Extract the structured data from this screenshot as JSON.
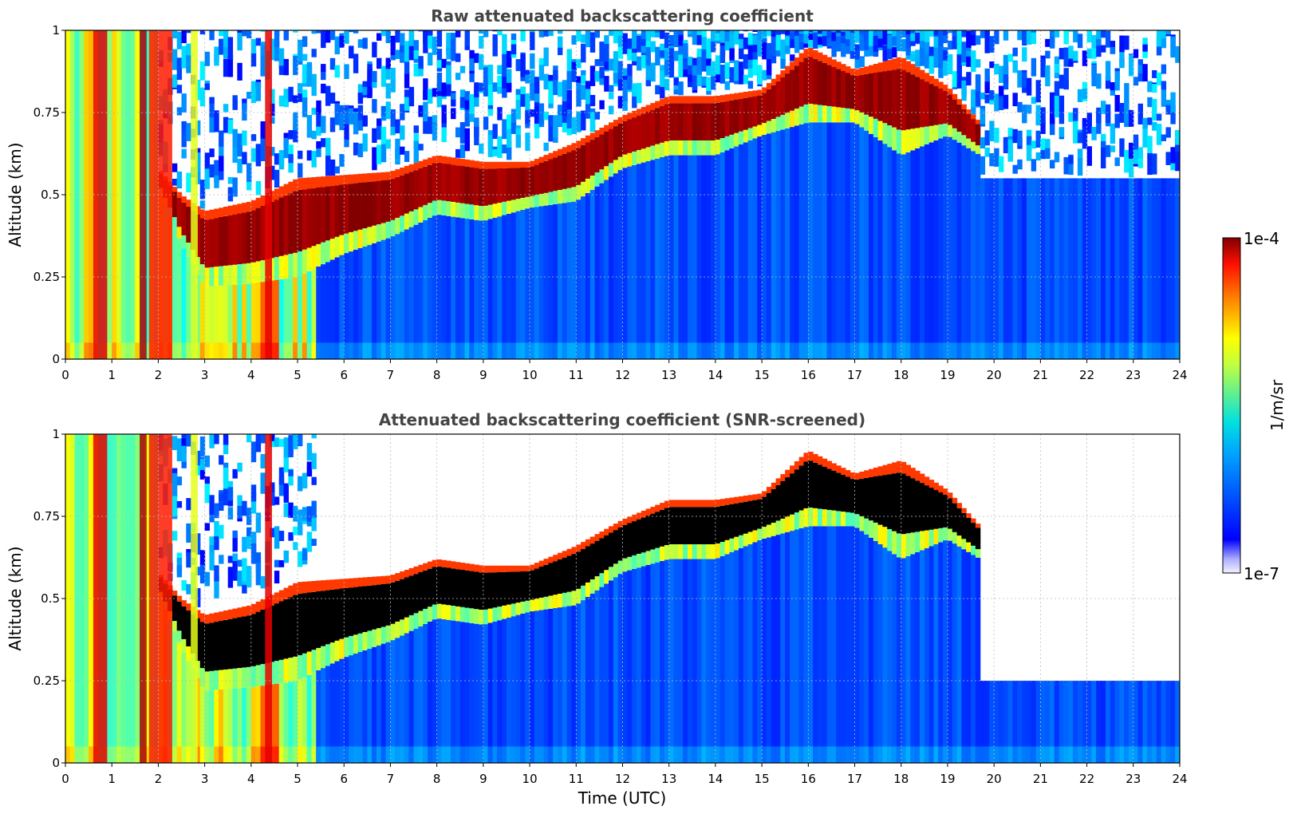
{
  "chart_data": [
    {
      "type": "heatmap",
      "title": "Raw attenuated backscattering coefficient",
      "xlabel": "",
      "ylabel": "Altitude (km)",
      "xlim": [
        0,
        24
      ],
      "ylim": [
        0,
        1
      ],
      "xticks": [
        "0",
        "1",
        "2",
        "3",
        "4",
        "5",
        "6",
        "7",
        "8",
        "9",
        "10",
        "11",
        "12",
        "13",
        "14",
        "15",
        "16",
        "17",
        "18",
        "19",
        "20",
        "21",
        "22",
        "23",
        "24"
      ],
      "yticks": [
        "0",
        "0.25",
        "0.5",
        "0.75",
        "1"
      ],
      "grid": true,
      "layer_top_km": [
        {
          "t": 0.0,
          "z": 0.98
        },
        {
          "t": 1.5,
          "z": 0.98
        },
        {
          "t": 2.0,
          "z": 0.58
        },
        {
          "t": 2.5,
          "z": 0.5
        },
        {
          "t": 3.0,
          "z": 0.45
        },
        {
          "t": 4.0,
          "z": 0.48
        },
        {
          "t": 5.0,
          "z": 0.55
        },
        {
          "t": 6.0,
          "z": 0.56
        },
        {
          "t": 7.0,
          "z": 0.57
        },
        {
          "t": 8.0,
          "z": 0.62
        },
        {
          "t": 9.0,
          "z": 0.6
        },
        {
          "t": 10.0,
          "z": 0.6
        },
        {
          "t": 11.0,
          "z": 0.66
        },
        {
          "t": 12.0,
          "z": 0.74
        },
        {
          "t": 13.0,
          "z": 0.8
        },
        {
          "t": 14.0,
          "z": 0.8
        },
        {
          "t": 15.0,
          "z": 0.82
        },
        {
          "t": 16.0,
          "z": 0.95
        },
        {
          "t": 17.0,
          "z": 0.88
        },
        {
          "t": 18.0,
          "z": 0.92
        },
        {
          "t": 19.0,
          "z": 0.83
        },
        {
          "t": 19.7,
          "z": 0.72
        }
      ],
      "layer_base_km": [
        {
          "t": 2.0,
          "z": 0.52
        },
        {
          "t": 2.5,
          "z": 0.35
        },
        {
          "t": 3.0,
          "z": 0.22
        },
        {
          "t": 4.0,
          "z": 0.23
        },
        {
          "t": 5.0,
          "z": 0.25
        },
        {
          "t": 6.0,
          "z": 0.32
        },
        {
          "t": 7.0,
          "z": 0.37
        },
        {
          "t": 8.0,
          "z": 0.44
        },
        {
          "t": 9.0,
          "z": 0.42
        },
        {
          "t": 10.0,
          "z": 0.46
        },
        {
          "t": 11.0,
          "z": 0.48
        },
        {
          "t": 12.0,
          "z": 0.58
        },
        {
          "t": 13.0,
          "z": 0.62
        },
        {
          "t": 14.0,
          "z": 0.62
        },
        {
          "t": 15.0,
          "z": 0.68
        },
        {
          "t": 16.0,
          "z": 0.72
        },
        {
          "t": 17.0,
          "z": 0.72
        },
        {
          "t": 18.0,
          "z": 0.62
        },
        {
          "t": 19.0,
          "z": 0.68
        },
        {
          "t": 19.7,
          "z": 0.62
        }
      ]
    },
    {
      "type": "heatmap",
      "title": "Attenuated backscattering coefficient (SNR-screened)",
      "xlabel": "Time (UTC)",
      "ylabel": "Altitude (km)",
      "xlim": [
        0,
        24
      ],
      "ylim": [
        0,
        1
      ],
      "xticks": [
        "0",
        "1",
        "2",
        "3",
        "4",
        "5",
        "6",
        "7",
        "8",
        "9",
        "10",
        "11",
        "12",
        "13",
        "14",
        "15",
        "16",
        "17",
        "18",
        "19",
        "20",
        "21",
        "22",
        "23",
        "24"
      ],
      "yticks": [
        "0",
        "0.25",
        "0.5",
        "0.75",
        "1"
      ],
      "grid": true,
      "saturated_color": "#000000"
    }
  ],
  "colorbar": {
    "label": "1/m/sr",
    "max_label": "1e-4",
    "min_label": "1e-7",
    "colormap": "jet",
    "low_end_color": "#f0f0ff"
  }
}
